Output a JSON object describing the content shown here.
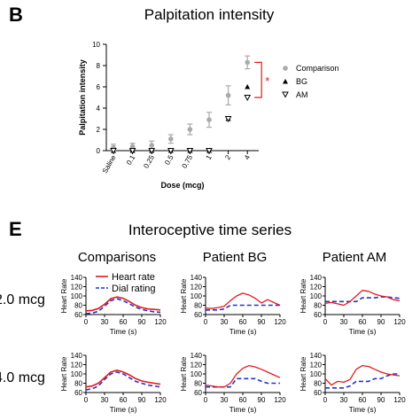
{
  "panel_b": {
    "letter": "B",
    "title": "Palpitation intensity",
    "ylabel": "Palpitation intensity",
    "xlabel": "Dose (mcg)",
    "categories": [
      "Saline",
      "0.1",
      "0.25",
      "0.5",
      "0.75",
      "1",
      "2",
      "4"
    ],
    "yticks": [
      "0",
      "2",
      "4",
      "6",
      "8",
      "10"
    ],
    "legend": [
      "Comparison",
      "BG",
      "AM"
    ],
    "significance": "*"
  },
  "panel_e": {
    "letter": "E",
    "title": "Interoceptive time series",
    "col_titles": [
      "Comparisons",
      "Patient BG",
      "Patient AM"
    ],
    "row_labels": [
      "2.0 mcg",
      "4.0 mcg"
    ],
    "ylabel": "Heart Rate",
    "xlabel": "Time (s)",
    "yticks": [
      "60",
      "80",
      "100",
      "120",
      "140"
    ],
    "xticks": [
      "0",
      "30",
      "60",
      "90",
      "120"
    ],
    "legend": [
      "Heart rate",
      "Dial rating"
    ]
  },
  "colors": {
    "comparison": "#aaaaaa",
    "heart_rate": "#e41a1c",
    "dial_rating": "#2233cc",
    "significance": "#e41a1c"
  },
  "chart_data": [
    {
      "type": "scatter",
      "title": "Palpitation intensity",
      "xlabel": "Dose (mcg)",
      "ylabel": "Palpitation intensity",
      "categories": [
        "Saline",
        "0.1",
        "0.25",
        "0.5",
        "0.75",
        "1",
        "2",
        "4"
      ],
      "ylim": [
        0,
        10
      ],
      "legend_position": "right",
      "series": [
        {
          "name": "Comparison",
          "values": [
            0.3,
            0.4,
            0.5,
            1.1,
            2.0,
            2.9,
            5.2,
            8.3
          ],
          "errors": [
            0.3,
            0.3,
            0.4,
            0.4,
            0.5,
            0.7,
            0.9,
            0.6
          ]
        },
        {
          "name": "BG",
          "values": [
            0,
            0,
            0,
            0,
            0,
            0,
            3.0,
            6.0
          ]
        },
        {
          "name": "AM",
          "values": [
            0,
            0,
            0,
            0,
            0,
            0,
            3.0,
            5.0
          ]
        }
      ]
    },
    {
      "type": "line",
      "title": "Comparisons 2.0 mcg",
      "xlabel": "Time (s)",
      "ylabel": "Heart Rate",
      "xlim": [
        0,
        120
      ],
      "ylim": [
        60,
        140
      ],
      "x": [
        0,
        10,
        20,
        30,
        40,
        50,
        60,
        70,
        80,
        90,
        100,
        110,
        120
      ],
      "series": [
        {
          "name": "Heart rate",
          "values": [
            68,
            69,
            73,
            82,
            94,
            98,
            95,
            88,
            80,
            75,
            72,
            71,
            70
          ]
        },
        {
          "name": "Dial rating",
          "values": [
            62,
            63,
            67,
            78,
            90,
            94,
            90,
            83,
            76,
            71,
            68,
            66,
            65
          ]
        }
      ]
    },
    {
      "type": "line",
      "title": "Patient BG 2.0 mcg",
      "xlabel": "Time (s)",
      "ylabel": "Heart Rate",
      "xlim": [
        0,
        120
      ],
      "ylim": [
        60,
        140
      ],
      "x": [
        0,
        10,
        20,
        30,
        40,
        50,
        60,
        70,
        80,
        90,
        100,
        110,
        120
      ],
      "series": [
        {
          "name": "Heart rate",
          "values": [
            74,
            73,
            75,
            78,
            90,
            100,
            106,
            102,
            95,
            85,
            92,
            86,
            80
          ]
        },
        {
          "name": "Dial rating",
          "values": [
            70,
            70,
            70,
            72,
            80,
            80,
            80,
            80,
            80,
            80,
            80,
            80,
            80
          ]
        }
      ]
    },
    {
      "type": "line",
      "title": "Patient AM 2.0 mcg",
      "xlabel": "Time (s)",
      "ylabel": "Heart Rate",
      "xlim": [
        0,
        120
      ],
      "ylim": [
        60,
        140
      ],
      "x": [
        0,
        10,
        20,
        30,
        40,
        50,
        60,
        70,
        80,
        90,
        100,
        110,
        120
      ],
      "series": [
        {
          "name": "Heart rate",
          "values": [
            84,
            86,
            83,
            80,
            88,
            100,
            112,
            110,
            104,
            100,
            98,
            92,
            90
          ]
        },
        {
          "name": "Dial rating",
          "values": [
            88,
            88,
            88,
            88,
            88,
            88,
            96,
            96,
            96,
            98,
            98,
            96,
            95
          ]
        }
      ]
    },
    {
      "type": "line",
      "title": "Comparisons 4.0 mcg",
      "xlabel": "Time (s)",
      "ylabel": "Heart Rate",
      "xlim": [
        0,
        120
      ],
      "ylim": [
        60,
        140
      ],
      "x": [
        0,
        10,
        20,
        30,
        40,
        50,
        60,
        70,
        80,
        90,
        100,
        110,
        120
      ],
      "series": [
        {
          "name": "Heart rate",
          "values": [
            72,
            74,
            80,
            92,
            104,
            108,
            104,
            98,
            90,
            85,
            82,
            80,
            78
          ]
        },
        {
          "name": "Dial rating",
          "values": [
            66,
            68,
            74,
            88,
            100,
            104,
            100,
            92,
            84,
            80,
            76,
            74,
            72
          ]
        }
      ]
    },
    {
      "type": "line",
      "title": "Patient BG 4.0 mcg",
      "xlabel": "Time (s)",
      "ylabel": "Heart Rate",
      "xlim": [
        0,
        120
      ],
      "ylim": [
        60,
        140
      ],
      "x": [
        0,
        10,
        20,
        30,
        40,
        50,
        60,
        70,
        80,
        90,
        100,
        110,
        120
      ],
      "series": [
        {
          "name": "Heart rate",
          "values": [
            76,
            74,
            72,
            72,
            80,
            100,
            112,
            118,
            115,
            110,
            104,
            98,
            92
          ]
        },
        {
          "name": "Dial rating",
          "values": [
            72,
            72,
            72,
            72,
            72,
            90,
            90,
            90,
            90,
            84,
            80,
            80,
            80
          ]
        }
      ]
    },
    {
      "type": "line",
      "title": "Patient AM 4.0 mcg",
      "xlabel": "Time (s)",
      "ylabel": "Heart Rate",
      "xlim": [
        0,
        120
      ],
      "ylim": [
        60,
        140
      ],
      "x": [
        0,
        10,
        20,
        30,
        40,
        50,
        60,
        70,
        80,
        90,
        100,
        110,
        120
      ],
      "series": [
        {
          "name": "Heart rate",
          "values": [
            90,
            76,
            84,
            82,
            88,
            110,
            118,
            116,
            110,
            104,
            100,
            98,
            96
          ]
        },
        {
          "name": "Dial rating",
          "values": [
            70,
            70,
            70,
            70,
            74,
            84,
            84,
            84,
            90,
            90,
            96,
            100,
            100
          ]
        }
      ]
    }
  ]
}
